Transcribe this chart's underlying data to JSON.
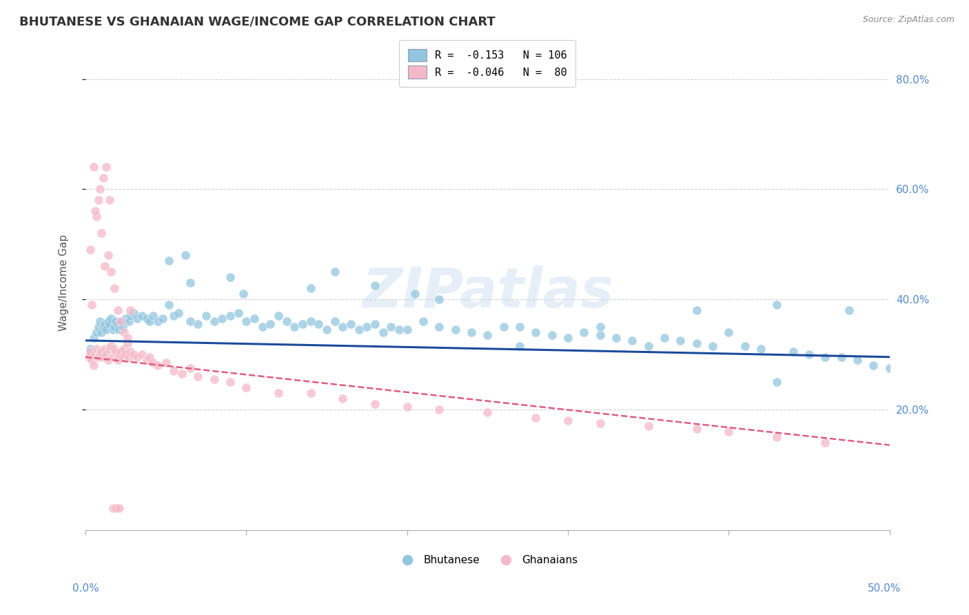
{
  "title": "BHUTANESE VS GHANAIAN WAGE/INCOME GAP CORRELATION CHART",
  "source": "Source: ZipAtlas.com",
  "ylabel": "Wage/Income Gap",
  "xlim": [
    0.0,
    0.5
  ],
  "ylim": [
    -0.02,
    0.88
  ],
  "ytick_positions": [
    0.2,
    0.4,
    0.6,
    0.8
  ],
  "ytick_labels": [
    "20.0%",
    "40.0%",
    "60.0%",
    "80.0%"
  ],
  "blue_R": "-0.153",
  "blue_N": "106",
  "pink_R": "-0.046",
  "pink_N": "80",
  "blue_color": "#92C5DE",
  "pink_color": "#F4B8C8",
  "blue_line_color": "#1A4A9B",
  "pink_line_color": "#E05A80",
  "background_color": "#FFFFFF",
  "grid_color": "#CCCCCC",
  "title_color": "#333333",
  "blue_trend_start": 0.325,
  "blue_trend_end": 0.295,
  "pink_trend_start": 0.295,
  "pink_trend_end": 0.135,
  "blue_scatter_x": [
    0.003,
    0.005,
    0.007,
    0.008,
    0.009,
    0.01,
    0.011,
    0.012,
    0.013,
    0.014,
    0.015,
    0.016,
    0.017,
    0.018,
    0.019,
    0.02,
    0.021,
    0.022,
    0.023,
    0.025,
    0.027,
    0.028,
    0.03,
    0.032,
    0.035,
    0.038,
    0.04,
    0.042,
    0.045,
    0.048,
    0.052,
    0.055,
    0.058,
    0.062,
    0.065,
    0.07,
    0.075,
    0.08,
    0.085,
    0.09,
    0.095,
    0.1,
    0.105,
    0.11,
    0.115,
    0.12,
    0.125,
    0.13,
    0.135,
    0.14,
    0.145,
    0.15,
    0.155,
    0.16,
    0.165,
    0.17,
    0.175,
    0.18,
    0.185,
    0.19,
    0.195,
    0.2,
    0.21,
    0.22,
    0.23,
    0.24,
    0.25,
    0.26,
    0.27,
    0.28,
    0.29,
    0.3,
    0.31,
    0.32,
    0.33,
    0.34,
    0.35,
    0.36,
    0.37,
    0.38,
    0.39,
    0.4,
    0.41,
    0.42,
    0.43,
    0.44,
    0.45,
    0.46,
    0.47,
    0.48,
    0.49,
    0.5,
    0.065,
    0.09,
    0.14,
    0.18,
    0.22,
    0.27,
    0.32,
    0.38,
    0.43,
    0.475,
    0.052,
    0.098,
    0.155,
    0.205
  ],
  "blue_scatter_y": [
    0.31,
    0.33,
    0.34,
    0.35,
    0.36,
    0.34,
    0.35,
    0.355,
    0.345,
    0.36,
    0.355,
    0.365,
    0.345,
    0.35,
    0.36,
    0.355,
    0.345,
    0.36,
    0.35,
    0.365,
    0.36,
    0.37,
    0.375,
    0.365,
    0.37,
    0.365,
    0.36,
    0.37,
    0.36,
    0.365,
    0.47,
    0.37,
    0.375,
    0.48,
    0.36,
    0.355,
    0.37,
    0.36,
    0.365,
    0.37,
    0.375,
    0.36,
    0.365,
    0.35,
    0.355,
    0.37,
    0.36,
    0.35,
    0.355,
    0.36,
    0.355,
    0.345,
    0.36,
    0.35,
    0.355,
    0.345,
    0.35,
    0.355,
    0.34,
    0.35,
    0.345,
    0.345,
    0.36,
    0.35,
    0.345,
    0.34,
    0.335,
    0.35,
    0.315,
    0.34,
    0.335,
    0.33,
    0.34,
    0.335,
    0.33,
    0.325,
    0.315,
    0.33,
    0.325,
    0.32,
    0.315,
    0.34,
    0.315,
    0.31,
    0.25,
    0.305,
    0.3,
    0.295,
    0.295,
    0.29,
    0.28,
    0.275,
    0.43,
    0.44,
    0.42,
    0.425,
    0.4,
    0.35,
    0.35,
    0.38,
    0.39,
    0.38,
    0.39,
    0.41,
    0.45,
    0.41
  ],
  "pink_scatter_x": [
    0.002,
    0.003,
    0.004,
    0.005,
    0.006,
    0.007,
    0.008,
    0.009,
    0.01,
    0.011,
    0.012,
    0.013,
    0.014,
    0.015,
    0.016,
    0.017,
    0.018,
    0.019,
    0.02,
    0.021,
    0.022,
    0.023,
    0.024,
    0.025,
    0.026,
    0.027,
    0.028,
    0.03,
    0.032,
    0.035,
    0.038,
    0.04,
    0.042,
    0.045,
    0.05,
    0.055,
    0.06,
    0.065,
    0.07,
    0.08,
    0.09,
    0.1,
    0.12,
    0.14,
    0.16,
    0.18,
    0.2,
    0.22,
    0.25,
    0.28,
    0.3,
    0.32,
    0.35,
    0.38,
    0.4,
    0.43,
    0.46,
    0.003,
    0.005,
    0.007,
    0.009,
    0.011,
    0.013,
    0.015,
    0.006,
    0.008,
    0.01,
    0.012,
    0.014,
    0.016,
    0.018,
    0.004,
    0.02,
    0.022,
    0.024,
    0.026,
    0.028,
    0.017,
    0.019,
    0.021
  ],
  "pink_scatter_y": [
    0.295,
    0.305,
    0.29,
    0.28,
    0.3,
    0.31,
    0.295,
    0.3,
    0.305,
    0.295,
    0.31,
    0.3,
    0.29,
    0.31,
    0.315,
    0.295,
    0.31,
    0.305,
    0.29,
    0.3,
    0.305,
    0.295,
    0.31,
    0.3,
    0.32,
    0.295,
    0.305,
    0.3,
    0.295,
    0.3,
    0.29,
    0.295,
    0.285,
    0.28,
    0.285,
    0.27,
    0.265,
    0.275,
    0.26,
    0.255,
    0.25,
    0.24,
    0.23,
    0.23,
    0.22,
    0.21,
    0.205,
    0.2,
    0.195,
    0.185,
    0.18,
    0.175,
    0.17,
    0.165,
    0.16,
    0.15,
    0.14,
    0.49,
    0.64,
    0.55,
    0.6,
    0.62,
    0.64,
    0.58,
    0.56,
    0.58,
    0.52,
    0.46,
    0.48,
    0.45,
    0.42,
    0.39,
    0.38,
    0.36,
    0.34,
    0.33,
    0.38,
    0.02,
    0.02,
    0.02
  ]
}
